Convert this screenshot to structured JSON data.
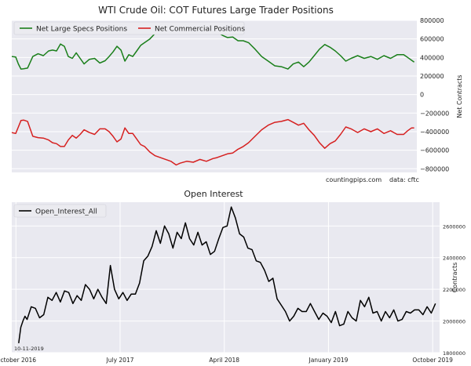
{
  "chart_data": [
    {
      "type": "line",
      "title": "WTI Crude Oil: COT Futures Large Trader Positions",
      "ylabel": "Net Contracts",
      "ylim": [
        -840000,
        800000
      ],
      "y_ticks": [
        -800000,
        -600000,
        -400000,
        -200000,
        0,
        200000,
        400000,
        600000,
        800000
      ],
      "y_tick_labels": [
        "−800000",
        "−600000",
        "−400000",
        "−200000",
        "0",
        "200000",
        "400000",
        "600000",
        "800000"
      ],
      "xlim": [
        2016.72,
        2019.8
      ],
      "grid": true,
      "legend": "top-left",
      "annotations": [
        "countingpips.com",
        "data: cftc"
      ],
      "series": [
        {
          "name": "Net Large Specs Positions",
          "color": "#1a7f1a",
          "x": [
            2016.72,
            2016.75,
            2016.77,
            2016.79,
            2016.81,
            2016.84,
            2016.88,
            2016.92,
            2016.96,
            2017.0,
            2017.03,
            2017.06,
            2017.09,
            2017.12,
            2017.15,
            2017.18,
            2017.21,
            2017.24,
            2017.27,
            2017.31,
            2017.35,
            2017.39,
            2017.43,
            2017.46,
            2017.49,
            2017.52,
            2017.55,
            2017.58,
            2017.61,
            2017.64,
            2017.67,
            2017.7,
            2017.73,
            2017.77,
            2017.81,
            2017.85,
            2017.89,
            2017.93,
            2017.97,
            2018.0,
            2018.05,
            2018.1,
            2018.15,
            2018.2,
            2018.25,
            2018.28,
            2018.32,
            2018.36,
            2018.4,
            2018.44,
            2018.48,
            2018.52,
            2018.57,
            2018.62,
            2018.67,
            2018.72,
            2018.77,
            2018.82,
            2018.86,
            2018.9,
            2018.94,
            2018.98,
            2019.02,
            2019.06,
            2019.1,
            2019.14,
            2019.18,
            2019.22,
            2019.26,
            2019.3,
            2019.35,
            2019.4,
            2019.45,
            2019.5,
            2019.55,
            2019.6,
            2019.65,
            2019.7,
            2019.73,
            2019.76,
            2019.78
          ],
          "y": [
            410000,
            405000,
            330000,
            275000,
            278000,
            285000,
            410000,
            440000,
            420000,
            470000,
            480000,
            470000,
            545000,
            520000,
            410000,
            390000,
            450000,
            390000,
            330000,
            380000,
            390000,
            340000,
            365000,
            410000,
            460000,
            520000,
            480000,
            360000,
            430000,
            410000,
            470000,
            530000,
            560000,
            600000,
            660000,
            655000,
            700000,
            720000,
            760000,
            770000,
            750000,
            770000,
            760000,
            770000,
            720000,
            680000,
            640000,
            615000,
            620000,
            580000,
            580000,
            560000,
            490000,
            410000,
            360000,
            310000,
            300000,
            275000,
            330000,
            350000,
            300000,
            350000,
            420000,
            490000,
            540000,
            510000,
            470000,
            420000,
            360000,
            390000,
            420000,
            390000,
            410000,
            380000,
            420000,
            390000,
            430000,
            430000,
            400000,
            370000,
            350000
          ]
        },
        {
          "name": "Net Commercial Positions",
          "color": "#d62020",
          "x": [
            2016.72,
            2016.75,
            2016.77,
            2016.79,
            2016.81,
            2016.84,
            2016.88,
            2016.92,
            2016.96,
            2017.0,
            2017.03,
            2017.06,
            2017.09,
            2017.12,
            2017.15,
            2017.18,
            2017.21,
            2017.24,
            2017.27,
            2017.31,
            2017.35,
            2017.39,
            2017.43,
            2017.46,
            2017.49,
            2017.52,
            2017.55,
            2017.58,
            2017.61,
            2017.64,
            2017.67,
            2017.7,
            2017.73,
            2017.77,
            2017.81,
            2017.85,
            2017.89,
            2017.93,
            2017.97,
            2018.0,
            2018.05,
            2018.1,
            2018.15,
            2018.2,
            2018.25,
            2018.28,
            2018.32,
            2018.36,
            2018.4,
            2018.44,
            2018.48,
            2018.52,
            2018.57,
            2018.62,
            2018.67,
            2018.72,
            2018.77,
            2018.82,
            2018.86,
            2018.9,
            2018.94,
            2018.98,
            2019.02,
            2019.06,
            2019.1,
            2019.14,
            2019.18,
            2019.22,
            2019.26,
            2019.3,
            2019.35,
            2019.4,
            2019.45,
            2019.5,
            2019.55,
            2019.6,
            2019.65,
            2019.7,
            2019.73,
            2019.76,
            2019.78
          ],
          "y": [
            -410000,
            -420000,
            -350000,
            -280000,
            -275000,
            -290000,
            -450000,
            -465000,
            -470000,
            -490000,
            -520000,
            -530000,
            -560000,
            -560000,
            -490000,
            -440000,
            -470000,
            -430000,
            -380000,
            -410000,
            -430000,
            -370000,
            -370000,
            -400000,
            -450000,
            -510000,
            -480000,
            -360000,
            -420000,
            -420000,
            -480000,
            -540000,
            -560000,
            -620000,
            -660000,
            -680000,
            -700000,
            -720000,
            -760000,
            -740000,
            -720000,
            -730000,
            -700000,
            -720000,
            -690000,
            -680000,
            -660000,
            -640000,
            -630000,
            -590000,
            -560000,
            -520000,
            -450000,
            -380000,
            -330000,
            -300000,
            -290000,
            -270000,
            -300000,
            -330000,
            -310000,
            -380000,
            -440000,
            -520000,
            -580000,
            -530000,
            -500000,
            -430000,
            -350000,
            -370000,
            -410000,
            -370000,
            -400000,
            -370000,
            -420000,
            -390000,
            -430000,
            -430000,
            -390000,
            -360000,
            -360000
          ]
        }
      ]
    },
    {
      "type": "line",
      "title": "Open Interest",
      "ylabel": "Contracts",
      "ylim": [
        1800000,
        2750000
      ],
      "y_ticks": [
        1800000,
        2000000,
        2200000,
        2400000,
        2600000
      ],
      "y_tick_labels": [
        "1800000",
        "2000000",
        "2200000",
        "2400000",
        "2600000"
      ],
      "xlim": [
        2016.72,
        2019.8
      ],
      "x_ticks": [
        2016.75,
        2017.5,
        2018.25,
        2019.0,
        2019.75
      ],
      "x_tick_labels": [
        "October 2016",
        "July 2017",
        "April 2018",
        "January 2019",
        "October 2019"
      ],
      "grid": true,
      "legend": "top-left",
      "annotations": [
        "10-11-2019"
      ],
      "series": [
        {
          "name": "Open_Interest_All",
          "color": "#000000",
          "x": [
            2016.77,
            2016.785,
            2016.8,
            2016.815,
            2016.83,
            2016.86,
            2016.89,
            2016.92,
            2016.95,
            2016.98,
            2017.01,
            2017.04,
            2017.07,
            2017.1,
            2017.13,
            2017.16,
            2017.19,
            2017.22,
            2017.25,
            2017.28,
            2017.31,
            2017.34,
            2017.37,
            2017.4,
            2017.43,
            2017.46,
            2017.49,
            2017.52,
            2017.55,
            2017.58,
            2017.61,
            2017.64,
            2017.67,
            2017.7,
            2017.73,
            2017.76,
            2017.79,
            2017.82,
            2017.85,
            2017.88,
            2017.91,
            2017.94,
            2017.97,
            2018.0,
            2018.03,
            2018.06,
            2018.09,
            2018.12,
            2018.15,
            2018.18,
            2018.21,
            2018.24,
            2018.27,
            2018.3,
            2018.33,
            2018.36,
            2018.39,
            2018.42,
            2018.45,
            2018.48,
            2018.51,
            2018.54,
            2018.57,
            2018.6,
            2018.63,
            2018.66,
            2018.69,
            2018.72,
            2018.75,
            2018.78,
            2018.81,
            2018.84,
            2018.87,
            2018.9,
            2018.93,
            2018.96,
            2018.99,
            2019.02,
            2019.05,
            2019.08,
            2019.11,
            2019.14,
            2019.17,
            2019.2,
            2019.23,
            2019.26,
            2019.29,
            2019.32,
            2019.35,
            2019.38,
            2019.41,
            2019.44,
            2019.47,
            2019.5,
            2019.53,
            2019.56,
            2019.59,
            2019.62,
            2019.65,
            2019.68,
            2019.71,
            2019.74,
            2019.77
          ],
          "y": [
            1860000,
            1960000,
            2000000,
            2030000,
            2010000,
            2090000,
            2080000,
            2020000,
            2040000,
            2150000,
            2130000,
            2180000,
            2120000,
            2190000,
            2180000,
            2110000,
            2160000,
            2130000,
            2230000,
            2200000,
            2140000,
            2200000,
            2150000,
            2110000,
            2350000,
            2200000,
            2140000,
            2180000,
            2130000,
            2170000,
            2170000,
            2240000,
            2380000,
            2410000,
            2470000,
            2570000,
            2490000,
            2600000,
            2550000,
            2460000,
            2560000,
            2520000,
            2620000,
            2520000,
            2480000,
            2560000,
            2480000,
            2500000,
            2420000,
            2440000,
            2520000,
            2590000,
            2600000,
            2720000,
            2650000,
            2550000,
            2530000,
            2460000,
            2450000,
            2380000,
            2370000,
            2320000,
            2250000,
            2270000,
            2140000,
            2100000,
            2060000,
            2000000,
            2030000,
            2080000,
            2060000,
            2060000,
            2110000,
            2060000,
            2010000,
            2050000,
            2030000,
            1990000,
            2060000,
            1970000,
            1980000,
            2060000,
            2020000,
            2000000,
            2130000,
            2090000,
            2150000,
            2050000,
            2060000,
            2000000,
            2060000,
            2020000,
            2070000,
            2000000,
            2010000,
            2060000,
            2050000,
            2070000,
            2070000,
            2040000,
            2090000,
            2050000,
            2110000
          ]
        }
      ]
    }
  ]
}
